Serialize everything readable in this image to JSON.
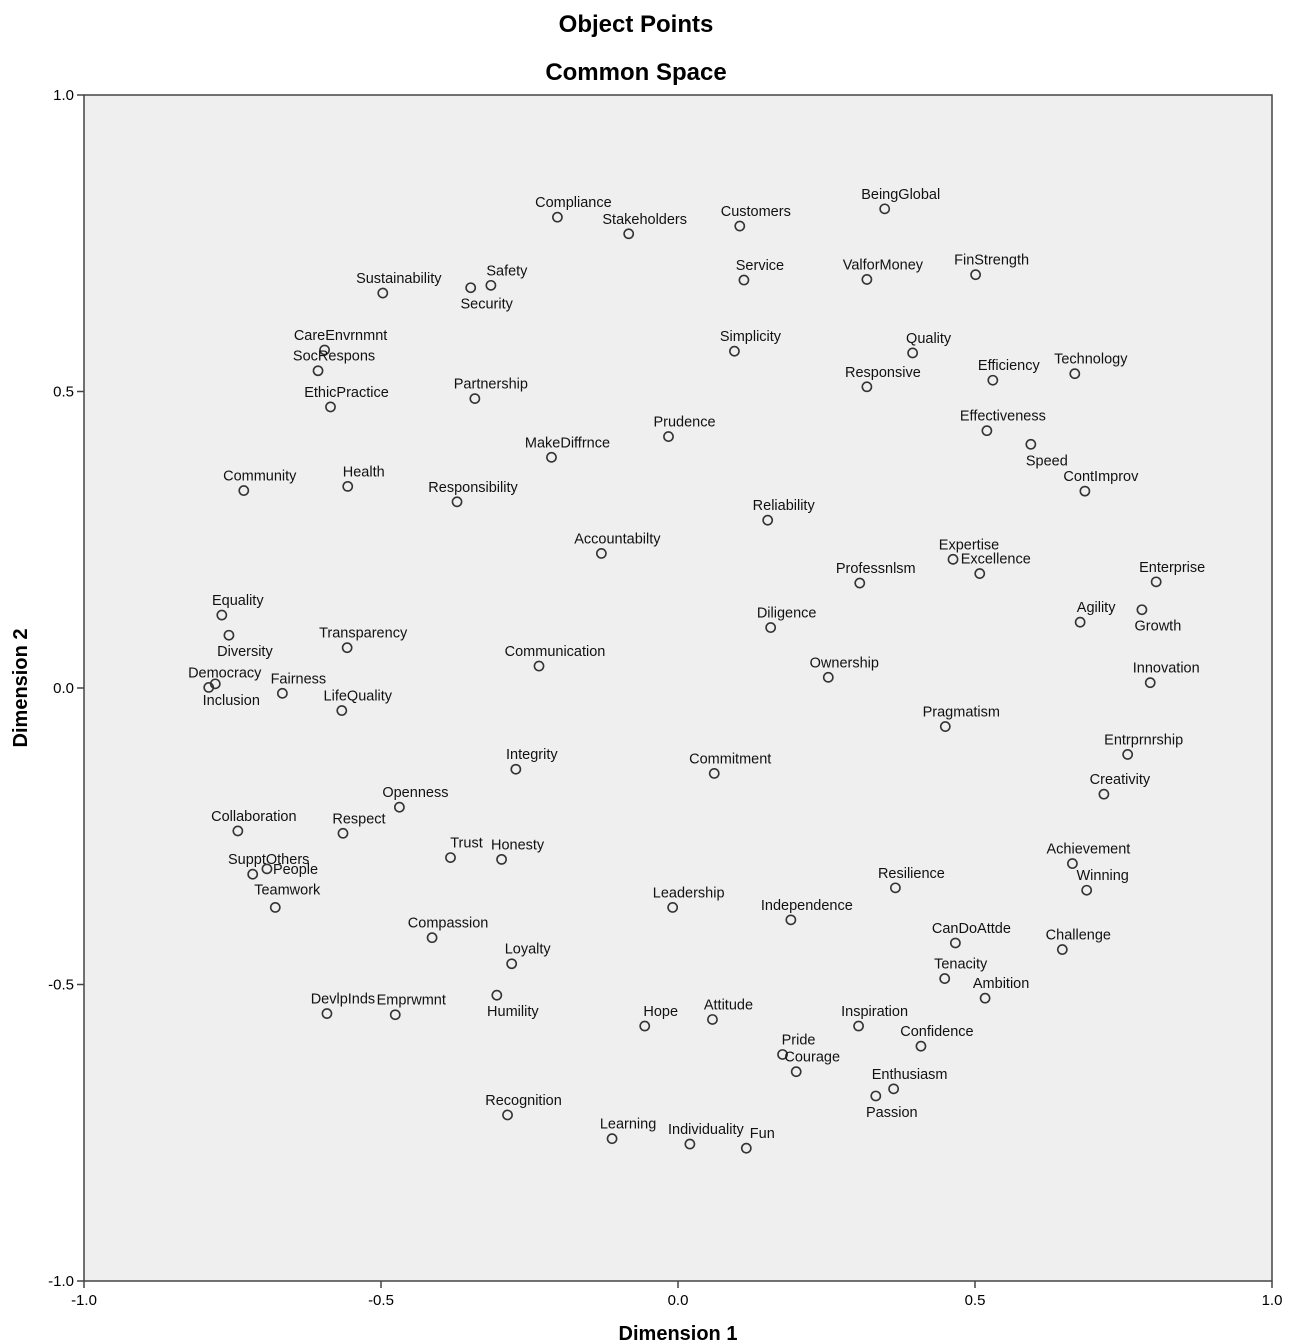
{
  "chart_data": {
    "type": "scatter",
    "title": "Object Points",
    "subtitle": "Common Space",
    "xlabel": "Dimension 1",
    "ylabel": "Dimension 2",
    "xlim": [
      -1.0,
      1.0
    ],
    "ylim": [
      -1.0,
      1.0
    ],
    "x_ticks": [
      "-1.0",
      "-0.5",
      "0.0",
      "0.5",
      "1.0"
    ],
    "y_ticks": [
      "1.0",
      "0.5",
      "0.0",
      "-0.5",
      "-1.0"
    ],
    "x_tick_values": [
      -1.0,
      -0.5,
      0.0,
      0.5,
      1.0
    ],
    "y_tick_values": [
      1.0,
      0.5,
      0.0,
      -0.5,
      -1.0
    ],
    "grid": false,
    "plot_background": "#efefef",
    "marker_color": "#333333",
    "points": [
      {
        "label": "Compliance",
        "x": -0.203,
        "y": 0.794
      },
      {
        "label": "Stakeholders",
        "x": -0.083,
        "y": 0.766
      },
      {
        "label": "Customers",
        "x": 0.104,
        "y": 0.779
      },
      {
        "label": "BeingGlobal",
        "x": 0.348,
        "y": 0.808
      },
      {
        "label": "Sustainability",
        "x": -0.497,
        "y": 0.666
      },
      {
        "label": "Safety",
        "x": -0.315,
        "y": 0.679
      },
      {
        "label": "Security",
        "x": -0.349,
        "y": 0.675
      },
      {
        "label": "Service",
        "x": 0.111,
        "y": 0.688
      },
      {
        "label": "ValforMoney",
        "x": 0.318,
        "y": 0.689
      },
      {
        "label": "FinStrength",
        "x": 0.501,
        "y": 0.697
      },
      {
        "label": "CareEnvrnmnt",
        "x": -0.595,
        "y": 0.57
      },
      {
        "label": "Simplicity",
        "x": 0.095,
        "y": 0.568
      },
      {
        "label": "Quality",
        "x": 0.395,
        "y": 0.565
      },
      {
        "label": "SocRespons",
        "x": -0.606,
        "y": 0.535
      },
      {
        "label": "Technology",
        "x": 0.668,
        "y": 0.53
      },
      {
        "label": "Efficiency",
        "x": 0.53,
        "y": 0.519
      },
      {
        "label": "Responsive",
        "x": 0.318,
        "y": 0.508
      },
      {
        "label": "Partnership",
        "x": -0.342,
        "y": 0.488
      },
      {
        "label": "EthicPractice",
        "x": -0.585,
        "y": 0.474
      },
      {
        "label": "Effectiveness",
        "x": 0.52,
        "y": 0.434
      },
      {
        "label": "Prudence",
        "x": -0.016,
        "y": 0.424
      },
      {
        "label": "Speed",
        "x": 0.594,
        "y": 0.411
      },
      {
        "label": "MakeDiffrnce",
        "x": -0.213,
        "y": 0.389
      },
      {
        "label": "Community",
        "x": -0.731,
        "y": 0.333
      },
      {
        "label": "Health",
        "x": -0.556,
        "y": 0.34
      },
      {
        "label": "ContImprov",
        "x": 0.685,
        "y": 0.332
      },
      {
        "label": "Responsibility",
        "x": -0.372,
        "y": 0.314
      },
      {
        "label": "Reliability",
        "x": 0.151,
        "y": 0.283
      },
      {
        "label": "Accountabilty",
        "x": -0.129,
        "y": 0.227
      },
      {
        "label": "Expertise",
        "x": 0.463,
        "y": 0.217
      },
      {
        "label": "Excellence",
        "x": 0.508,
        "y": 0.193
      },
      {
        "label": "Enterprise",
        "x": 0.805,
        "y": 0.179
      },
      {
        "label": "Professnlsm",
        "x": 0.306,
        "y": 0.177
      },
      {
        "label": "Growth",
        "x": 0.781,
        "y": 0.132
      },
      {
        "label": "Equality",
        "x": -0.768,
        "y": 0.123
      },
      {
        "label": "Agility",
        "x": 0.677,
        "y": 0.111
      },
      {
        "label": "Diligence",
        "x": 0.156,
        "y": 0.102
      },
      {
        "label": "Diversity",
        "x": -0.756,
        "y": 0.089
      },
      {
        "label": "Transparency",
        "x": -0.557,
        "y": 0.068
      },
      {
        "label": "Communication",
        "x": -0.234,
        "y": 0.037
      },
      {
        "label": "Ownership",
        "x": 0.253,
        "y": 0.018
      },
      {
        "label": "Innovation",
        "x": 0.795,
        "y": 0.009
      },
      {
        "label": "Democracy",
        "x": -0.79,
        "y": 0.001
      },
      {
        "label": "Inclusion",
        "x": -0.779,
        "y": 0.007
      },
      {
        "label": "Fairness",
        "x": -0.666,
        "y": -0.009
      },
      {
        "label": "LifeQuality",
        "x": -0.566,
        "y": -0.038
      },
      {
        "label": "Pragmatism",
        "x": 0.45,
        "y": -0.065
      },
      {
        "label": "Entrprnrship",
        "x": 0.757,
        "y": -0.112
      },
      {
        "label": "Integrity",
        "x": -0.273,
        "y": -0.137
      },
      {
        "label": "Commitment",
        "x": 0.061,
        "y": -0.144
      },
      {
        "label": "Creativity",
        "x": 0.717,
        "y": -0.179
      },
      {
        "label": "Openness",
        "x": -0.469,
        "y": -0.201
      },
      {
        "label": "Collaboration",
        "x": -0.741,
        "y": -0.241
      },
      {
        "label": "Respect",
        "x": -0.564,
        "y": -0.245
      },
      {
        "label": "Trust",
        "x": -0.383,
        "y": -0.286
      },
      {
        "label": "Honesty",
        "x": -0.297,
        "y": -0.289
      },
      {
        "label": "Achievement",
        "x": 0.664,
        "y": -0.296
      },
      {
        "label": "People",
        "x": -0.692,
        "y": -0.305
      },
      {
        "label": "SupptOthers",
        "x": -0.716,
        "y": -0.314
      },
      {
        "label": "Resilience",
        "x": 0.366,
        "y": -0.337
      },
      {
        "label": "Winning",
        "x": 0.688,
        "y": -0.341
      },
      {
        "label": "Teamwork",
        "x": -0.678,
        "y": -0.37
      },
      {
        "label": "Leadership",
        "x": -0.009,
        "y": -0.37
      },
      {
        "label": "Independence",
        "x": 0.19,
        "y": -0.391
      },
      {
        "label": "Compassion",
        "x": -0.414,
        "y": -0.421
      },
      {
        "label": "CanDoAttde",
        "x": 0.467,
        "y": -0.43
      },
      {
        "label": "Challenge",
        "x": 0.647,
        "y": -0.441
      },
      {
        "label": "Loyalty",
        "x": -0.28,
        "y": -0.465
      },
      {
        "label": "Tenacity",
        "x": 0.449,
        "y": -0.49
      },
      {
        "label": "Ambition",
        "x": 0.517,
        "y": -0.523
      },
      {
        "label": "Humility",
        "x": -0.305,
        "y": -0.518
      },
      {
        "label": "DevlpInds",
        "x": -0.591,
        "y": -0.549
      },
      {
        "label": "Emprwmnt",
        "x": -0.476,
        "y": -0.551
      },
      {
        "label": "Attitude",
        "x": 0.058,
        "y": -0.559
      },
      {
        "label": "Hope",
        "x": -0.056,
        "y": -0.57
      },
      {
        "label": "Inspiration",
        "x": 0.304,
        "y": -0.57
      },
      {
        "label": "Confidence",
        "x": 0.409,
        "y": -0.604
      },
      {
        "label": "Pride",
        "x": 0.176,
        "y": -0.618
      },
      {
        "label": "Courage",
        "x": 0.199,
        "y": -0.647
      },
      {
        "label": "Enthusiasm",
        "x": 0.363,
        "y": -0.676
      },
      {
        "label": "Passion",
        "x": 0.333,
        "y": -0.688
      },
      {
        "label": "Recognition",
        "x": -0.287,
        "y": -0.72
      },
      {
        "label": "Learning",
        "x": -0.111,
        "y": -0.76
      },
      {
        "label": "Individuality",
        "x": 0.02,
        "y": -0.769
      },
      {
        "label": "Fun",
        "x": 0.115,
        "y": -0.776
      }
    ]
  }
}
